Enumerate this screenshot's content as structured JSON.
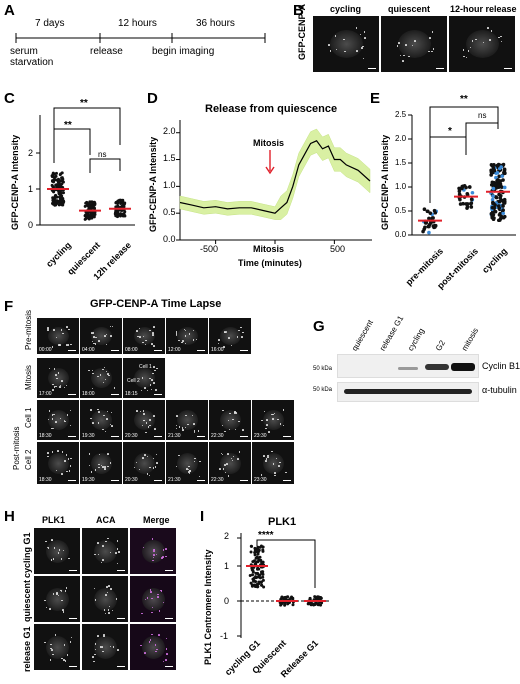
{
  "panels": {
    "A": "A",
    "B": "B",
    "C": "C",
    "D": "D",
    "E": "E",
    "F": "F",
    "G": "G",
    "H": "H",
    "I": "I"
  },
  "timeline": {
    "intervals": [
      "7 days",
      "12 hours",
      "36 hours"
    ],
    "events": [
      "serum starvation",
      "release",
      "begin imaging"
    ]
  },
  "panelB": {
    "ylabel": "GFP-CENP-A",
    "columns": [
      "cycling",
      "quiescent",
      "12-hour release"
    ]
  },
  "panelC": {
    "ylabel": "GFP-CENP-A Intensity",
    "yticks": [
      "0",
      "1",
      "2"
    ],
    "categories": [
      "cycling",
      "quiescent",
      "12h release"
    ],
    "sig": [
      "**",
      "**",
      "ns"
    ]
  },
  "panelD": {
    "title": "Release from quiescence",
    "ylabel": "GFP-CENP-A Intensity",
    "xlabel": "Time (minutes)",
    "annotation": "Mitosis",
    "yticks": [
      "0.0",
      "0.5",
      "1.0",
      "1.5",
      "2.0"
    ],
    "xticks": [
      "-500",
      "Mitosis",
      "500"
    ]
  },
  "panelE": {
    "ylabel": "GFP-CENP-A Intensity",
    "yticks": [
      "0.0",
      "0.5",
      "1.0",
      "1.5",
      "2.0",
      "2.5"
    ],
    "categories": [
      "pre-mitosis",
      "post-mitosis",
      "cycling"
    ],
    "sig": [
      "**",
      "*",
      "ns"
    ]
  },
  "panelF": {
    "title": "GFP-CENP-A Time Lapse",
    "rows": [
      "Pre-mitosis",
      "Mitosis",
      "Cell 1",
      "Cell 2"
    ],
    "group": "Post-mitosis",
    "row1_times": [
      "00:00",
      "04:00",
      "08:00",
      "12:00",
      "16:00"
    ],
    "row2_times": [
      "17:00",
      "18:00",
      "18:15"
    ],
    "row3_times": [
      "18:30",
      "19:30",
      "20:30",
      "21:30",
      "22:30",
      "23:30"
    ],
    "row4_times": [
      "18:30",
      "19:30",
      "20:30",
      "21:30",
      "22:30",
      "23:30"
    ],
    "cell1": "Cell 1",
    "cell2": "Cell 2"
  },
  "panelG": {
    "lanes": [
      "quiescent",
      "release G1",
      "cycling",
      "G2",
      "mitosis"
    ],
    "markers": [
      "50 kDa",
      "50 kDa"
    ],
    "proteins": [
      "Cyclin B1",
      "α-tubulin"
    ]
  },
  "panelH": {
    "columns": [
      "PLK1",
      "ACA",
      "Merge"
    ],
    "rows": [
      "cycling G1",
      "quiescent",
      "release G1"
    ]
  },
  "panelI": {
    "title": "PLK1",
    "ylabel": "PLK1 Centromere Intensity",
    "yticks": [
      "-1",
      "0",
      "1",
      "2"
    ],
    "categories": [
      "cycling G1",
      "Quiescent",
      "Release G1"
    ],
    "sig": "****"
  },
  "chart_data": [
    {
      "type": "scatter",
      "panel": "C",
      "ylabel": "GFP-CENP-A Intensity",
      "categories": [
        "cycling",
        "quiescent",
        "12h release"
      ],
      "means": [
        1.0,
        0.4,
        0.45
      ],
      "ylim": [
        0,
        2.5
      ]
    },
    {
      "type": "line",
      "panel": "D",
      "title": "Release from quiescence",
      "xlabel": "Time (minutes)",
      "ylabel": "GFP-CENP-A Intensity",
      "x": [
        -800,
        -700,
        -600,
        -500,
        -400,
        -300,
        -200,
        -100,
        0,
        50,
        100,
        150,
        200,
        250,
        300,
        350,
        400,
        450,
        500,
        550,
        600,
        700,
        800
      ],
      "y": [
        0.7,
        0.65,
        0.6,
        0.62,
        0.58,
        0.6,
        0.6,
        0.55,
        0.5,
        0.6,
        0.7,
        1.0,
        1.4,
        1.6,
        1.8,
        1.85,
        1.7,
        1.75,
        1.5,
        1.5,
        1.4,
        1.3,
        1.1
      ],
      "ylim": [
        0,
        2.2
      ],
      "xlim": [
        -800,
        800
      ]
    },
    {
      "type": "scatter",
      "panel": "E",
      "ylabel": "GFP-CENP-A Intensity",
      "categories": [
        "pre-mitosis",
        "post-mitosis",
        "cycling"
      ],
      "means": [
        0.3,
        0.8,
        0.9
      ],
      "ylim": [
        0,
        2.5
      ]
    },
    {
      "type": "scatter",
      "panel": "I",
      "title": "PLK1",
      "ylabel": "PLK1 Centromere Intensity",
      "categories": [
        "cycling G1",
        "Quiescent",
        "Release G1"
      ],
      "means": [
        1.0,
        0.0,
        0.0
      ],
      "ylim": [
        -1,
        2
      ]
    }
  ]
}
